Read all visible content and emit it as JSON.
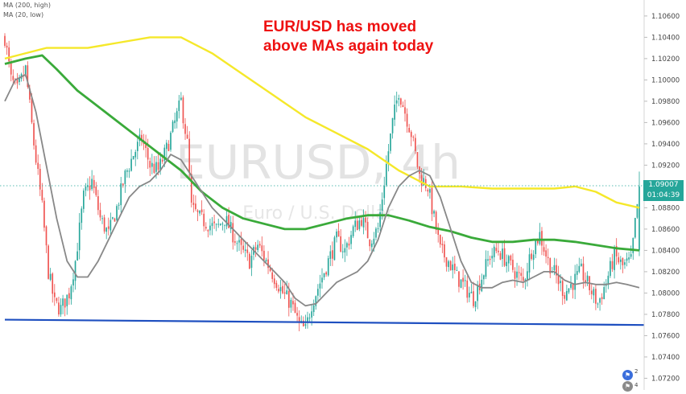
{
  "chart_data": {
    "type": "candlestick",
    "watermark_symbol": "EURUSD, 4h",
    "watermark_name": "Euro / U.S. Dollar",
    "indicators": [
      {
        "label": "MA (200, high)",
        "color": "#f5e82a"
      },
      {
        "label": "MA (20, low)",
        "color": "#888888"
      },
      {
        "label": "",
        "color": "#3aaa3a"
      }
    ],
    "annotation": [
      "EUR/USD has moved",
      "above MAs again today"
    ],
    "y_ticks": [
      "1.10600",
      "1.10400",
      "1.10200",
      "1.10000",
      "1.09800",
      "1.09600",
      "1.09400",
      "1.09200",
      "1.08800",
      "1.08600",
      "1.08400",
      "1.08200",
      "1.08000",
      "1.07800",
      "1.07600",
      "1.07400",
      "1.07200"
    ],
    "ylim": [
      1.0709,
      1.1075
    ],
    "last_price": "1.09007",
    "countdown": "01:04:39",
    "support_line": [
      1.0775,
      1.077
    ],
    "price_path": [
      [
        0,
        1.104
      ],
      [
        3,
        1.1
      ],
      [
        6,
        1.099
      ],
      [
        10,
        1.101
      ],
      [
        14,
        1.094
      ],
      [
        18,
        1.088
      ],
      [
        21,
        1.082
      ],
      [
        24,
        1.079
      ],
      [
        27,
        1.0785
      ],
      [
        31,
        1.08
      ],
      [
        34,
        1.083
      ],
      [
        38,
        1.089
      ],
      [
        42,
        1.0905
      ],
      [
        46,
        1.087
      ],
      [
        50,
        1.0855
      ],
      [
        54,
        1.088
      ],
      [
        58,
        1.091
      ],
      [
        62,
        1.093
      ],
      [
        66,
        1.0945
      ],
      [
        70,
        1.092
      ],
      [
        74,
        1.0915
      ],
      [
        78,
        1.0935
      ],
      [
        82,
        1.096
      ],
      [
        85,
        1.098
      ],
      [
        88,
        1.094
      ],
      [
        90,
        1.088
      ],
      [
        94,
        1.087
      ],
      [
        98,
        1.0865
      ],
      [
        102,
        1.086
      ],
      [
        106,
        1.087
      ],
      [
        110,
        1.0855
      ],
      [
        114,
        1.084
      ],
      [
        118,
        1.083
      ],
      [
        122,
        1.0845
      ],
      [
        126,
        1.083
      ],
      [
        130,
        1.0815
      ],
      [
        134,
        1.08
      ],
      [
        138,
        1.079
      ],
      [
        142,
        1.077
      ],
      [
        145,
        1.0765
      ],
      [
        148,
        1.079
      ],
      [
        152,
        1.081
      ],
      [
        156,
        1.083
      ],
      [
        160,
        1.085
      ],
      [
        164,
        1.084
      ],
      [
        168,
        1.086
      ],
      [
        172,
        1.087
      ],
      [
        176,
        1.085
      ],
      [
        180,
        1.086
      ],
      [
        184,
        1.092
      ],
      [
        187,
        1.096
      ],
      [
        190,
        1.099
      ],
      [
        193,
        1.097
      ],
      [
        196,
        1.095
      ],
      [
        200,
        1.091
      ],
      [
        204,
        1.09
      ],
      [
        207,
        1.087
      ],
      [
        210,
        1.084
      ],
      [
        214,
        1.083
      ],
      [
        218,
        1.0815
      ],
      [
        222,
        1.0805
      ],
      [
        226,
        1.0795
      ],
      [
        230,
        1.0815
      ],
      [
        234,
        1.0835
      ],
      [
        238,
        1.084
      ],
      [
        242,
        1.083
      ],
      [
        246,
        1.082
      ],
      [
        250,
        1.081
      ],
      [
        254,
        1.084
      ],
      [
        258,
        1.0855
      ],
      [
        262,
        1.083
      ],
      [
        266,
        1.0815
      ],
      [
        270,
        1.08
      ],
      [
        274,
        1.081
      ],
      [
        278,
        1.082
      ],
      [
        282,
        1.0805
      ],
      [
        286,
        1.079
      ],
      [
        290,
        1.081
      ],
      [
        294,
        1.0835
      ],
      [
        298,
        1.0825
      ],
      [
        302,
        1.083
      ],
      [
        306,
        1.09
      ]
    ],
    "ma200_high": [
      [
        0,
        1.102
      ],
      [
        20,
        1.103
      ],
      [
        40,
        1.103
      ],
      [
        55,
        1.1035
      ],
      [
        70,
        1.104
      ],
      [
        85,
        1.104
      ],
      [
        100,
        1.1025
      ],
      [
        115,
        1.1005
      ],
      [
        130,
        1.0985
      ],
      [
        145,
        1.0965
      ],
      [
        160,
        1.095
      ],
      [
        175,
        1.0935
      ],
      [
        190,
        1.0915
      ],
      [
        205,
        1.09
      ],
      [
        220,
        1.09
      ],
      [
        235,
        1.0898
      ],
      [
        250,
        1.0898
      ],
      [
        265,
        1.0898
      ],
      [
        275,
        1.09
      ],
      [
        285,
        1.0895
      ],
      [
        295,
        1.0885
      ],
      [
        306,
        1.088
      ]
    ],
    "ma20_low": [
      [
        0,
        1.098
      ],
      [
        5,
        1.1
      ],
      [
        10,
        1.1005
      ],
      [
        15,
        1.097
      ],
      [
        20,
        1.092
      ],
      [
        25,
        1.087
      ],
      [
        30,
        1.083
      ],
      [
        35,
        1.0815
      ],
      [
        40,
        1.0815
      ],
      [
        45,
        1.083
      ],
      [
        50,
        1.085
      ],
      [
        55,
        1.087
      ],
      [
        60,
        1.089
      ],
      [
        65,
        1.09
      ],
      [
        70,
        1.0905
      ],
      [
        75,
        1.0915
      ],
      [
        80,
        1.093
      ],
      [
        85,
        1.0925
      ],
      [
        90,
        1.091
      ],
      [
        95,
        1.0895
      ],
      [
        100,
        1.088
      ],
      [
        105,
        1.087
      ],
      [
        110,
        1.086
      ],
      [
        115,
        1.085
      ],
      [
        120,
        1.084
      ],
      [
        125,
        1.083
      ],
      [
        130,
        1.082
      ],
      [
        135,
        1.081
      ],
      [
        140,
        1.0795
      ],
      [
        145,
        1.0788
      ],
      [
        150,
        1.079
      ],
      [
        155,
        1.08
      ],
      [
        160,
        1.081
      ],
      [
        165,
        1.0815
      ],
      [
        170,
        1.082
      ],
      [
        175,
        1.083
      ],
      [
        180,
        1.085
      ],
      [
        185,
        1.088
      ],
      [
        190,
        1.09
      ],
      [
        195,
        1.091
      ],
      [
        200,
        1.0915
      ],
      [
        205,
        1.091
      ],
      [
        210,
        1.089
      ],
      [
        215,
        1.086
      ],
      [
        220,
        1.083
      ],
      [
        225,
        1.081
      ],
      [
        230,
        1.0805
      ],
      [
        235,
        1.0805
      ],
      [
        240,
        1.081
      ],
      [
        245,
        1.0812
      ],
      [
        250,
        1.081
      ],
      [
        255,
        1.0815
      ],
      [
        260,
        1.082
      ],
      [
        265,
        1.082
      ],
      [
        270,
        1.0812
      ],
      [
        275,
        1.0808
      ],
      [
        280,
        1.081
      ],
      [
        285,
        1.0808
      ],
      [
        290,
        1.0808
      ],
      [
        295,
        1.081
      ],
      [
        300,
        1.0808
      ],
      [
        306,
        1.0805
      ]
    ],
    "ma_green": [
      [
        0,
        1.1015
      ],
      [
        10,
        1.102
      ],
      [
        18,
        1.1023
      ],
      [
        25,
        1.101
      ],
      [
        35,
        1.099
      ],
      [
        45,
        1.0975
      ],
      [
        55,
        1.096
      ],
      [
        65,
        1.0945
      ],
      [
        75,
        1.093
      ],
      [
        85,
        1.0915
      ],
      [
        95,
        1.0895
      ],
      [
        105,
        1.088
      ],
      [
        115,
        1.087
      ],
      [
        125,
        1.0865
      ],
      [
        135,
        1.086
      ],
      [
        145,
        1.086
      ],
      [
        155,
        1.0865
      ],
      [
        165,
        1.087
      ],
      [
        175,
        1.0873
      ],
      [
        185,
        1.0873
      ],
      [
        195,
        1.0868
      ],
      [
        205,
        1.0862
      ],
      [
        215,
        1.0858
      ],
      [
        225,
        1.0852
      ],
      [
        235,
        1.0848
      ],
      [
        245,
        1.0848
      ],
      [
        255,
        1.085
      ],
      [
        265,
        1.085
      ],
      [
        275,
        1.0848
      ],
      [
        285,
        1.0845
      ],
      [
        295,
        1.0842
      ],
      [
        306,
        1.084
      ]
    ],
    "colors": {
      "up": "#26a69a",
      "down": "#ef5350",
      "support": "#1e4fc0",
      "price_tag": "#26a69a",
      "annotation": "#ee1111"
    }
  },
  "icons": [
    {
      "name": "event-flag-icon",
      "count": "2",
      "color": "#3a6edc"
    },
    {
      "name": "event-flag-icon",
      "count": "4",
      "color": "#8a8a8a"
    }
  ]
}
